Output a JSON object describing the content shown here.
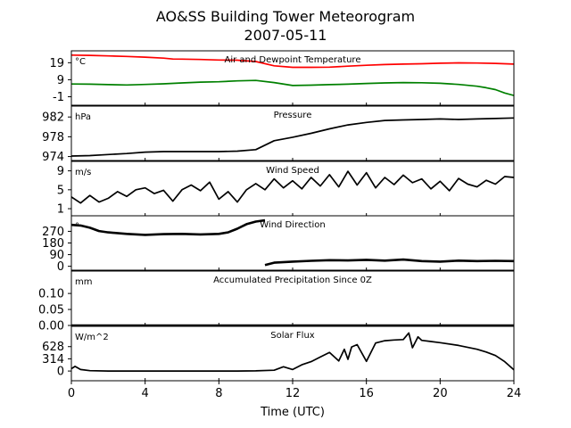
{
  "title_line1": "AO&SS Building Tower Meteorogram",
  "title_line2": "2007-05-11",
  "chart_data": {
    "type": "line",
    "title": "AO&SS Building Tower Meteorogram 2007-05-11",
    "xlabel": "Time (UTC)",
    "xlim": [
      0,
      24
    ],
    "xticks": [
      0,
      4,
      8,
      12,
      16,
      20,
      24
    ],
    "panels": [
      {
        "id": "temp",
        "title": "Air and Dewpoint Temperature",
        "unit": "°C",
        "ylim": [
          -6,
          26
        ],
        "yticks": [
          19,
          9,
          -1
        ],
        "series": [
          {
            "color": "#ff0000",
            "x": [
              0,
              1,
              2,
              3,
              4,
              5,
              5.5,
              6,
              7,
              8,
              9,
              10,
              11,
              12,
              13,
              14,
              15,
              16,
              17,
              18,
              19,
              20,
              21,
              22,
              23,
              24
            ],
            "y": [
              23.5,
              23.3,
              23,
              22.7,
              22.3,
              21.7,
              21.2,
              21.1,
              20.9,
              20.6,
              20.5,
              19.7,
              17.2,
              16.3,
              16.3,
              16.4,
              17,
              17.5,
              17.9,
              18.2,
              18.4,
              18.7,
              18.9,
              18.8,
              18.6,
              18.2
            ]
          },
          {
            "color": "#008000",
            "x": [
              0,
              1,
              2,
              3,
              4,
              5,
              6,
              7,
              8,
              9,
              10,
              11,
              12,
              13,
              14,
              15,
              16,
              17,
              18,
              19,
              20,
              21,
              22,
              22.5,
              23,
              23.5,
              24
            ],
            "y": [
              6.5,
              6.4,
              6.1,
              5.9,
              6.2,
              6.6,
              7.1,
              7.6,
              7.8,
              8.3,
              8.6,
              7.3,
              5.6,
              5.8,
              6.1,
              6.4,
              6.8,
              7.1,
              7.3,
              7.2,
              6.9,
              6.2,
              5.2,
              4.3,
              3.2,
              1.2,
              -0.3
            ]
          }
        ]
      },
      {
        "id": "pres",
        "title": "Pressure",
        "unit": "hPa",
        "ylim": [
          973.2,
          984.2
        ],
        "yticks": [
          982,
          978,
          974
        ],
        "series": [
          {
            "color": "#000000",
            "x": [
              0,
              1,
              2,
              3,
              4,
              5,
              6,
              7,
              8,
              9,
              10,
              10.5,
              11,
              12,
              13,
              14,
              15,
              16,
              17,
              18,
              19,
              20,
              21,
              22,
              23,
              24
            ],
            "y": [
              974.1,
              974.2,
              974.4,
              974.6,
              974.9,
              975.0,
              975.0,
              975.0,
              975.0,
              975.1,
              975.4,
              976.3,
              977.2,
              977.9,
              978.7,
              979.6,
              980.4,
              980.9,
              981.3,
              981.4,
              981.5,
              981.6,
              981.5,
              981.6,
              981.7,
              981.8
            ]
          }
        ]
      },
      {
        "id": "wspd",
        "title": "Wind Speed",
        "unit": "m/s",
        "ylim": [
          -0.5,
          11
        ],
        "yticks": [
          9,
          5,
          1
        ],
        "series": [
          {
            "color": "#000000",
            "x": [
              0,
              0.5,
              1,
              1.5,
              2,
              2.5,
              3,
              3.5,
              4,
              4.5,
              5,
              5.5,
              6,
              6.5,
              7,
              7.5,
              8,
              8.5,
              9,
              9.5,
              10,
              10.5,
              11,
              11.5,
              12,
              12.5,
              13,
              13.5,
              14,
              14.5,
              15,
              15.5,
              16,
              16.5,
              17,
              17.5,
              18,
              18.5,
              19,
              19.5,
              20,
              20.5,
              21,
              21.5,
              22,
              22.5,
              23,
              23.5,
              24
            ],
            "y": [
              3.5,
              2.2,
              3.8,
              2.4,
              3.2,
              4.6,
              3.6,
              5.0,
              5.4,
              4.2,
              4.9,
              2.6,
              5.0,
              6.0,
              4.8,
              6.6,
              3.0,
              4.6,
              2.4,
              5.0,
              6.3,
              5.0,
              7.3,
              5.4,
              6.9,
              5.2,
              7.6,
              5.8,
              8.2,
              5.6,
              8.9,
              6.0,
              8.6,
              5.4,
              7.6,
              6.1,
              8.1,
              6.5,
              7.3,
              5.2,
              6.8,
              4.8,
              7.4,
              6.2,
              5.6,
              7.0,
              6.2,
              7.8,
              7.6
            ]
          }
        ]
      },
      {
        "id": "wdir",
        "title": "Wind Direction",
        "unit": "°",
        "ylim": [
          -30,
          390
        ],
        "yticks": [
          270,
          180,
          90,
          0
        ],
        "series": [
          {
            "color": "#000000",
            "x": [
              0,
              0.5,
              1,
              1.5,
              2,
              3,
              4,
              5,
              6,
              7,
              8,
              8.5,
              9,
              9.5,
              10,
              10.5
            ],
            "y": [
              320,
              315,
              298,
              272,
              262,
              250,
              243,
              248,
              250,
              246,
              250,
              262,
              290,
              325,
              345,
              355
            ]
          },
          {
            "color": "#000000",
            "x": [
              10.5,
              11,
              12,
              13,
              14,
              15,
              16,
              17,
              18,
              19,
              20,
              21,
              22,
              23,
              24
            ],
            "y": [
              10,
              28,
              36,
              42,
              47,
              45,
              50,
              44,
              52,
              40,
              36,
              44,
              40,
              42,
              40
            ]
          }
        ]
      },
      {
        "id": "precip",
        "title": "Accumulated Precipitation Since 0Z",
        "unit": "mm",
        "ylim": [
          0,
          0.17
        ],
        "yticks": [
          0.1,
          0.05,
          0.0
        ],
        "series": [
          {
            "color": "#000000",
            "x": [
              0,
              24
            ],
            "y": [
              0,
              0
            ]
          }
        ]
      },
      {
        "id": "solar",
        "title": "Solar Flux",
        "unit": "W/m^2",
        "ylim": [
          -250,
          1150
        ],
        "yticks": [
          628,
          314,
          0
        ],
        "series": [
          {
            "color": "#000000",
            "x": [
              0,
              0.2,
              0.5,
              1,
              2,
              3,
              4,
              5,
              6,
              7,
              8,
              9,
              10,
              11,
              11.5,
              12,
              12.5,
              13,
              13.5,
              14,
              14.5,
              14.8,
              15,
              15.2,
              15.5,
              16,
              16.5,
              17,
              17.5,
              18,
              18.3,
              18.5,
              18.8,
              19,
              19.5,
              20,
              21,
              22,
              22.5,
              23,
              23.5,
              24
            ],
            "y": [
              60,
              120,
              40,
              10,
              0,
              0,
              0,
              0,
              0,
              0,
              0,
              0,
              5,
              20,
              110,
              40,
              160,
              240,
              360,
              480,
              260,
              560,
              300,
              620,
              680,
              250,
              720,
              780,
              800,
              810,
              980,
              600,
              880,
              790,
              760,
              730,
              660,
              560,
              490,
              400,
              240,
              30
            ]
          }
        ]
      }
    ]
  }
}
